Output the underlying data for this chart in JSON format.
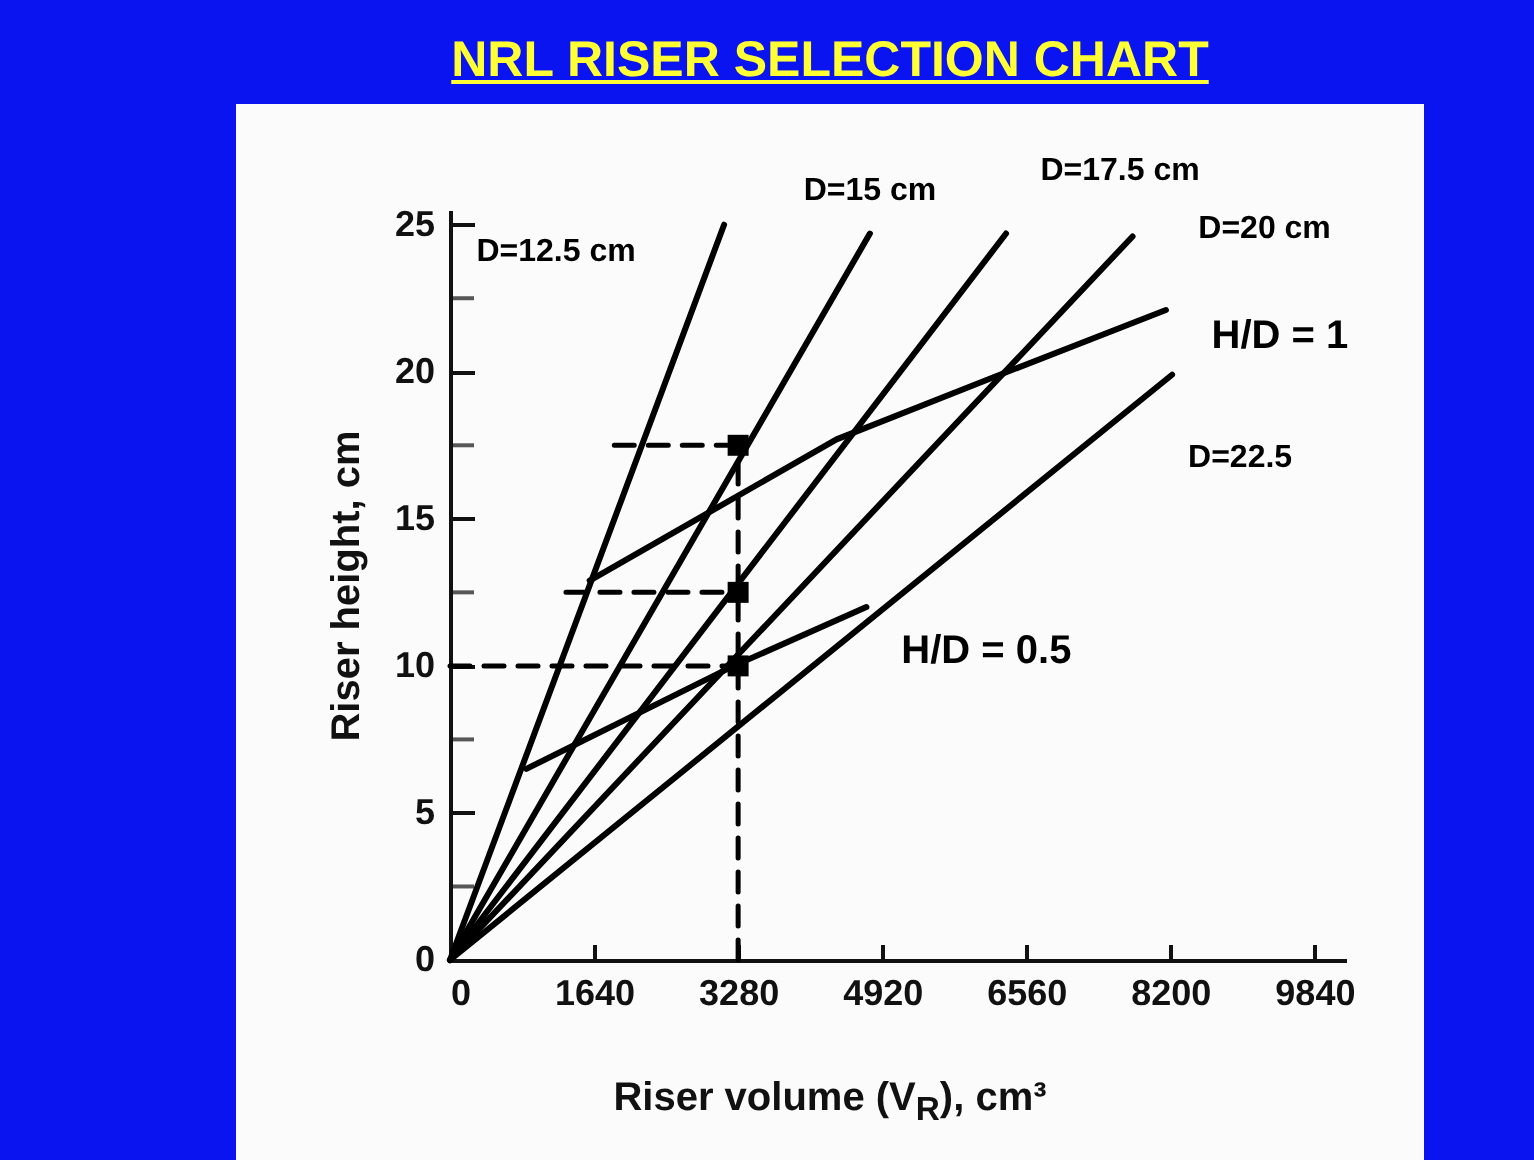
{
  "chart_data": {
    "type": "line",
    "title": "NRL RISER SELECTION CHART",
    "xlabel": "Riser volume (V$_{R}$), cm³",
    "ylabel": "Riser height, cm",
    "xlim": [
      0,
      10200
    ],
    "xticks": [
      0,
      1640,
      3280,
      4920,
      6560,
      8200,
      9840
    ],
    "ylim": [
      0,
      25.5
    ],
    "yticks": [
      0,
      {
        "value": 2.5,
        "label": null
      },
      5,
      {
        "value": 7.5,
        "label": null
      },
      10,
      {
        "value": 12.5,
        "label": null
      },
      15,
      {
        "value": 17.5,
        "label": null
      },
      20,
      {
        "value": 22.5,
        "label": null
      },
      25
    ],
    "marker": "none",
    "line_style": "solid",
    "series": [
      {
        "name": "D=12.5 cm",
        "color": "#000000",
        "x": [
          0,
          3120
        ],
        "values": [
          0,
          25.0
        ]
      },
      {
        "name": "D=15 cm",
        "color": "#000000",
        "x": [
          0,
          4780
        ],
        "values": [
          0,
          24.7
        ]
      },
      {
        "name": "D=17.5 cm",
        "color": "#000000",
        "x": [
          0,
          6330
        ],
        "values": [
          0,
          24.7
        ]
      },
      {
        "name": "D=20 cm",
        "color": "#000000",
        "x": [
          0,
          7770
        ],
        "values": [
          0,
          24.6
        ]
      },
      {
        "name": "H/D = 1",
        "color": "#000000",
        "x": [
          1590,
          4400,
          6260,
          8150
        ],
        "values": [
          12.9,
          17.7,
          19.9,
          22.1
        ]
      },
      {
        "name": "D=22.5",
        "color": "#000000",
        "x": [
          0,
          8220
        ],
        "values": [
          0,
          19.9
        ]
      },
      {
        "name": "H/D = 0.5",
        "color": "#000000",
        "x": [
          870,
          3230,
          4740
        ],
        "values": [
          6.5,
          10.0,
          12.0
        ]
      },
      {
        "color": "#000000",
        "line_style": "dashed",
        "x": [
          3280,
          3280
        ],
        "values": [
          0,
          17.5
        ]
      },
      {
        "color": "#000000",
        "line_style": "dashed",
        "x": [
          0,
          3280
        ],
        "values": [
          10,
          10
        ]
      },
      {
        "color": "#000000",
        "line_style": "dashed",
        "x": [
          1320,
          3280
        ],
        "values": [
          12.5,
          12.5
        ]
      },
      {
        "color": "#000000",
        "line_style": "dashed",
        "x": [
          1870,
          3280
        ],
        "values": [
          17.5,
          17.5
        ]
      },
      {
        "type": "scatter",
        "marker": "square",
        "color": "#000000",
        "x": [
          3280,
          3280,
          3280
        ],
        "values": [
          10,
          12.5,
          17.5
        ]
      }
    ]
  }
}
